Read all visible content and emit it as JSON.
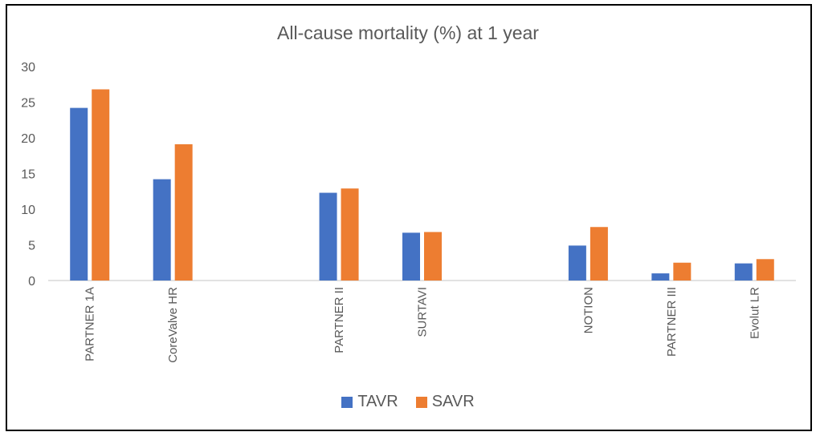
{
  "chart_data": {
    "type": "bar",
    "title": "All-cause mortality (%) at 1 year",
    "xlabel": "",
    "ylabel": "",
    "ylim": [
      0,
      30
    ],
    "yticks": [
      0,
      5,
      10,
      15,
      20,
      25,
      30
    ],
    "grid": false,
    "legend_position": "bottom",
    "categories": [
      "PARTNER 1A",
      "CoreValve HR",
      "",
      "PARTNER II",
      "SURTAVI",
      "",
      "NOTION",
      "PARTNER III",
      "Evolut LR"
    ],
    "series": [
      {
        "name": "TAVR",
        "color": "#4472C4",
        "values": [
          24.2,
          14.2,
          null,
          12.3,
          6.7,
          null,
          4.9,
          1.0,
          2.4
        ]
      },
      {
        "name": "SAVR",
        "color": "#ED7D31",
        "values": [
          26.8,
          19.1,
          null,
          12.9,
          6.8,
          null,
          7.5,
          2.5,
          3.0
        ]
      }
    ]
  }
}
